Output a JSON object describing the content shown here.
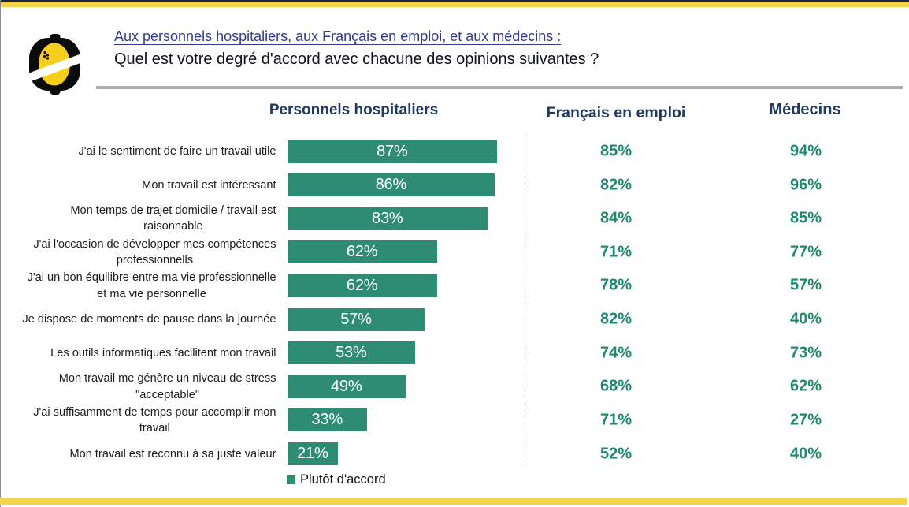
{
  "title": {
    "line1": "Aux personnels hospitaliers, aux Français en emploi, et aux médecins :",
    "line2": "Quel est votre degré d'accord avec chacune des opinions suivantes ?"
  },
  "columns": {
    "bars": "Personnels hospitaliers",
    "col2": "Français en emploi",
    "col3": "Médecins"
  },
  "legend": {
    "label": "Plutôt d'accord"
  },
  "logo": {
    "name": "lemon-logo"
  },
  "colors": {
    "yellow": "#f5d44c",
    "navy_line": "#1a2353",
    "navy": "#203864",
    "title_blue": "#303a92",
    "title_dark": "#0d1020",
    "teal": "#2e8c75",
    "teal_text": "#1e8870"
  },
  "rows": [
    {
      "label_lines": [
        "J'ai le sentiment de faire un travail utile"
      ],
      "hospitaliers": "87%",
      "francais": "85%",
      "medecins": "94%",
      "pct": 87
    },
    {
      "label_lines": [
        "Mon travail est intéressant"
      ],
      "hospitaliers": "86%",
      "francais": "82%",
      "medecins": "96%",
      "pct": 86
    },
    {
      "label_lines": [
        "Mon temps de trajet domicile / travail est",
        "raisonnable"
      ],
      "hospitaliers": "83%",
      "francais": "84%",
      "medecins": "85%",
      "pct": 83
    },
    {
      "label_lines": [
        "J'ai l'occasion de développer mes compétences",
        "professionnells"
      ],
      "hospitaliers": "62%",
      "francais": "71%",
      "medecins": "77%",
      "pct": 62
    },
    {
      "label_lines": [
        "J'ai un bon équilibre entre ma vie professionnelle",
        "et ma vie personnelle"
      ],
      "hospitaliers": "62%",
      "francais": "78%",
      "medecins": "57%",
      "pct": 62
    },
    {
      "label_lines": [
        "Je dispose de moments de pause dans la journée"
      ],
      "hospitaliers": "57%",
      "francais": "82%",
      "medecins": "40%",
      "pct": 57
    },
    {
      "label_lines": [
        "Les outils informatiques facilitent mon travail"
      ],
      "hospitaliers": "53%",
      "francais": "74%",
      "medecins": "73%",
      "pct": 53
    },
    {
      "label_lines": [
        "Mon travail me génère un niveau de stress",
        "\"acceptable\""
      ],
      "hospitaliers": "49%",
      "francais": "68%",
      "medecins": "62%",
      "pct": 49
    },
    {
      "label_lines": [
        "J'ai suffisamment de temps pour accomplir mon",
        "travail"
      ],
      "hospitaliers": "33%",
      "francais": "71%",
      "medecins": "27%",
      "pct": 33
    },
    {
      "label_lines": [
        "Mon travail est reconnu à sa juste valeur"
      ],
      "hospitaliers": "21%",
      "francais": "52%",
      "medecins": "40%",
      "pct": 21
    }
  ],
  "chart_data": {
    "type": "bar",
    "orientation": "horizontal",
    "title": "Quel est votre degré d'accord avec chacune des opinions suivantes ?",
    "categories": [
      "J'ai le sentiment de faire un travail utile",
      "Mon travail est intéressant",
      "Mon temps de trajet domicile / travail est raisonnable",
      "J'ai l'occasion de développer mes compétences professionnells",
      "J'ai un bon équilibre entre ma vie professionnelle et ma vie personnelle",
      "Je dispose de moments de pause dans la journée",
      "Les outils informatiques facilitent mon travail",
      "Mon travail me génère un niveau de stress \"acceptable\"",
      "J'ai suffisamment de temps pour accomplir mon travail",
      "Mon travail est reconnu à sa juste valeur"
    ],
    "series": [
      {
        "name": "Personnels hospitaliers",
        "display": "bars",
        "values": [
          87,
          86,
          83,
          62,
          62,
          57,
          53,
          49,
          33,
          21
        ]
      },
      {
        "name": "Français en emploi",
        "display": "text-column",
        "values": [
          85,
          82,
          84,
          71,
          78,
          82,
          74,
          68,
          71,
          52
        ]
      },
      {
        "name": "Médecins",
        "display": "text-column",
        "values": [
          94,
          96,
          85,
          77,
          57,
          40,
          73,
          62,
          27,
          40
        ]
      }
    ],
    "unit": "%",
    "xlim": [
      0,
      100
    ],
    "legend_entries": [
      "Plutôt d'accord"
    ],
    "legend_position": "bottom",
    "grid": false
  }
}
